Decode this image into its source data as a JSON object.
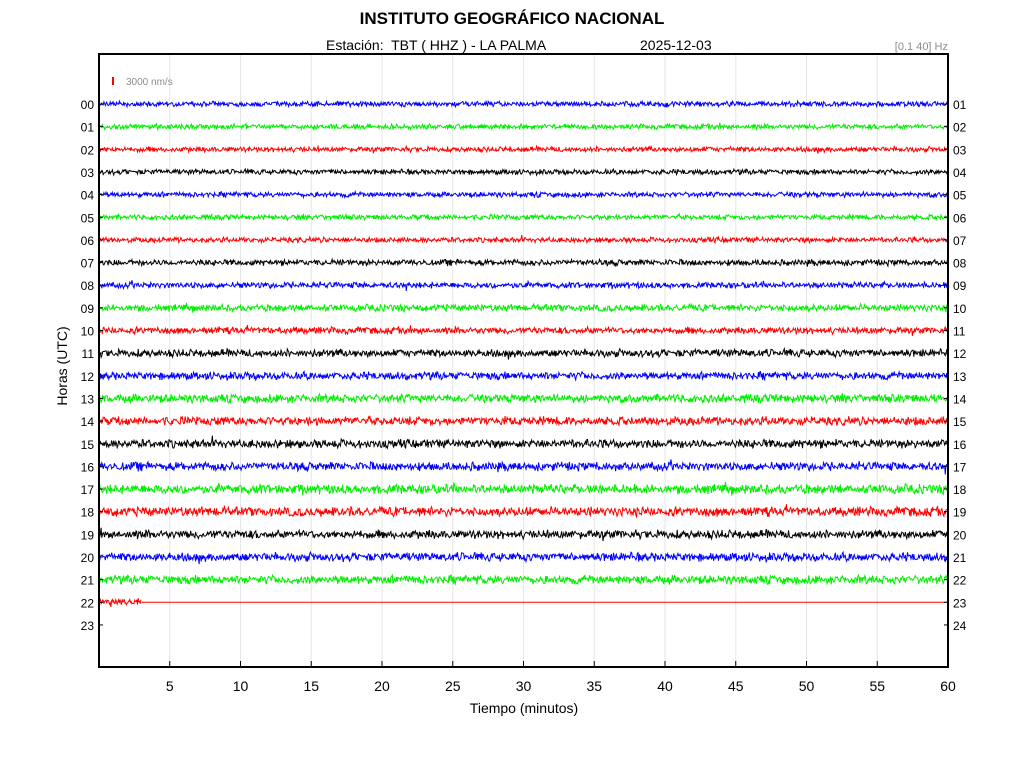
{
  "header": {
    "title": "INSTITUTO GEOGRÁFICO NACIONAL",
    "station_label": "Estación:  TBT ( HHZ ) - LA PALMA",
    "date": "2025-12-03",
    "filter_band": "[0.1 40] Hz"
  },
  "chart_data": {
    "type": "line",
    "title": "INSTITUTO GEOGRÁFICO NACIONAL",
    "xlabel": "Tiempo (minutos)",
    "ylabel": "Horas (UTC)",
    "xlim": [
      0,
      60
    ],
    "x_ticks": [
      "5",
      "10",
      "15",
      "20",
      "25",
      "30",
      "35",
      "40",
      "45",
      "50",
      "55",
      "60"
    ],
    "y_ticks_left": [
      "00",
      "01",
      "02",
      "03",
      "04",
      "05",
      "06",
      "07",
      "08",
      "09",
      "10",
      "11",
      "12",
      "13",
      "14",
      "15",
      "16",
      "17",
      "18",
      "19",
      "20",
      "21",
      "22",
      "23"
    ],
    "y_ticks_right": [
      "01",
      "02",
      "03",
      "04",
      "05",
      "06",
      "07",
      "08",
      "09",
      "10",
      "11",
      "12",
      "13",
      "14",
      "15",
      "16",
      "17",
      "18",
      "19",
      "20",
      "21",
      "22",
      "23",
      "24"
    ],
    "grid": true,
    "scale_bar": {
      "label": "3000 nm/s",
      "color": "#ff0000"
    },
    "color_cycle": [
      "#0000ff",
      "#00ee00",
      "#ff0000",
      "#000000"
    ],
    "traces": [
      {
        "hour": "00",
        "color": "#0000ff",
        "amplitude": 3,
        "end_minute": 60
      },
      {
        "hour": "01",
        "color": "#00ee00",
        "amplitude": 3,
        "end_minute": 60
      },
      {
        "hour": "02",
        "color": "#ff0000",
        "amplitude": 3,
        "end_minute": 60
      },
      {
        "hour": "03",
        "color": "#000000",
        "amplitude": 3,
        "end_minute": 60
      },
      {
        "hour": "04",
        "color": "#0000ff",
        "amplitude": 3,
        "end_minute": 60
      },
      {
        "hour": "05",
        "color": "#00ee00",
        "amplitude": 3,
        "end_minute": 60
      },
      {
        "hour": "06",
        "color": "#ff0000",
        "amplitude": 3,
        "end_minute": 60
      },
      {
        "hour": "07",
        "color": "#000000",
        "amplitude": 3.5,
        "end_minute": 60
      },
      {
        "hour": "08",
        "color": "#0000ff",
        "amplitude": 3.5,
        "end_minute": 60
      },
      {
        "hour": "09",
        "color": "#00ee00",
        "amplitude": 4,
        "end_minute": 60
      },
      {
        "hour": "10",
        "color": "#ff0000",
        "amplitude": 4,
        "end_minute": 60
      },
      {
        "hour": "11",
        "color": "#000000",
        "amplitude": 4.5,
        "end_minute": 60
      },
      {
        "hour": "12",
        "color": "#0000ff",
        "amplitude": 4.5,
        "end_minute": 60
      },
      {
        "hour": "13",
        "color": "#00ee00",
        "amplitude": 5,
        "end_minute": 60
      },
      {
        "hour": "14",
        "color": "#ff0000",
        "amplitude": 5,
        "end_minute": 60
      },
      {
        "hour": "15",
        "color": "#000000",
        "amplitude": 5,
        "end_minute": 60
      },
      {
        "hour": "16",
        "color": "#0000ff",
        "amplitude": 5,
        "end_minute": 60
      },
      {
        "hour": "17",
        "color": "#00ee00",
        "amplitude": 5.5,
        "end_minute": 60
      },
      {
        "hour": "18",
        "color": "#ff0000",
        "amplitude": 5.5,
        "end_minute": 60
      },
      {
        "hour": "19",
        "color": "#000000",
        "amplitude": 5,
        "end_minute": 60
      },
      {
        "hour": "20",
        "color": "#0000ff",
        "amplitude": 5,
        "end_minute": 60
      },
      {
        "hour": "21",
        "color": "#00ee00",
        "amplitude": 5,
        "end_minute": 60
      },
      {
        "hour": "22",
        "color": "#ff0000",
        "amplitude": 5,
        "end_minute": 3
      }
    ]
  }
}
